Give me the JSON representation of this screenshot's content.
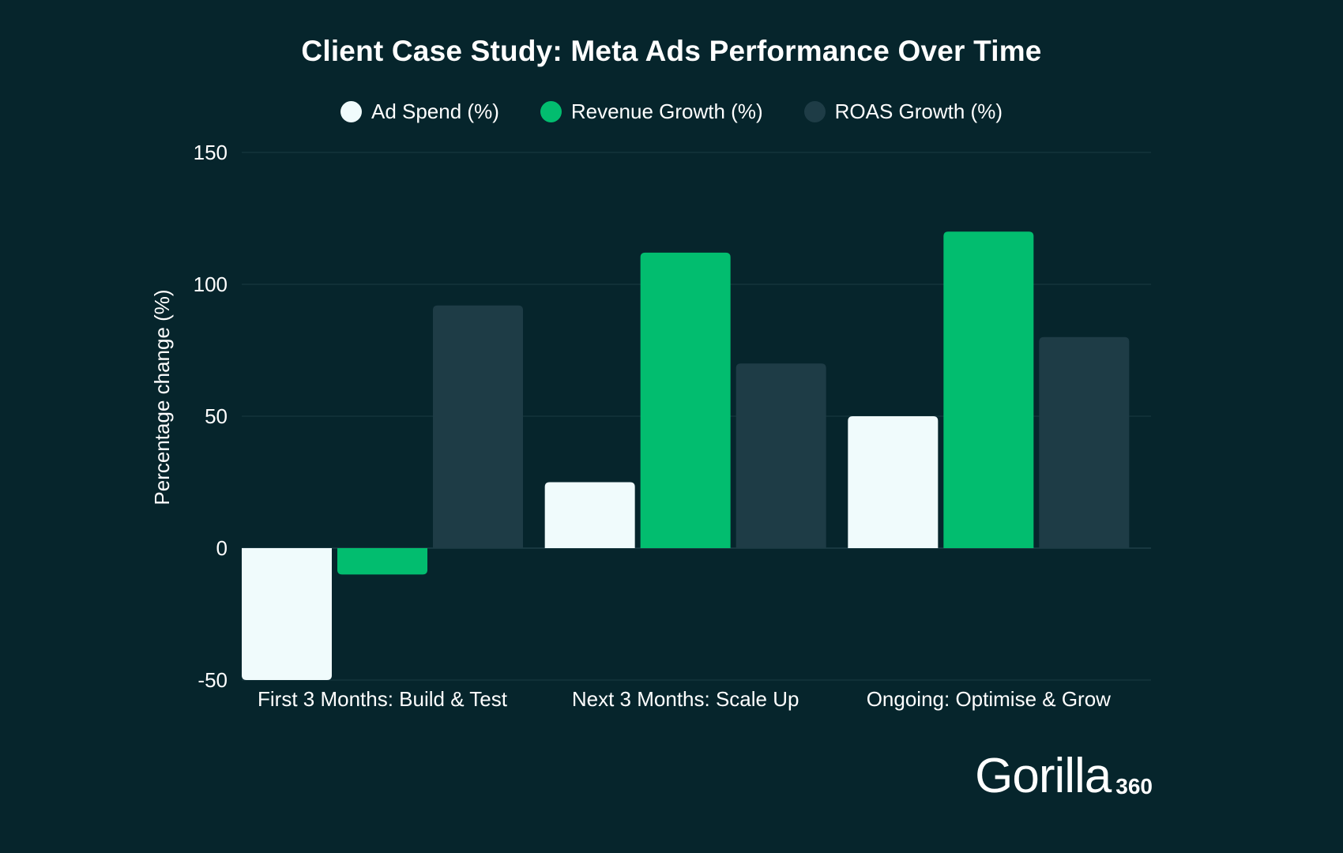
{
  "chart_data": {
    "type": "bar",
    "title": "Client Case Study: Meta Ads Performance Over Time",
    "ylabel": "Percentage change (%)",
    "xlabel": "",
    "categories": [
      "First 3 Months: Build & Test",
      "Next 3 Months: Scale Up",
      "Ongoing: Optimise & Grow"
    ],
    "series": [
      {
        "name": "Ad Spend (%)",
        "color": "#f0fbfc",
        "values": [
          -50,
          25,
          50
        ]
      },
      {
        "name": "Revenue Growth (%)",
        "color": "#02bd6f",
        "values": [
          -10,
          112,
          120
        ]
      },
      {
        "name": "ROAS Growth (%)",
        "color": "#1e3c46",
        "values": [
          92,
          70,
          80
        ]
      }
    ],
    "ylim": [
      -50,
      150
    ],
    "yticks": [
      -50,
      0,
      50,
      100,
      150
    ],
    "grid": true,
    "legend_position": "top-center"
  },
  "branding": {
    "logo_word": "Gorilla",
    "logo_number": "360"
  },
  "colors": {
    "background": "#06252c",
    "gridline": "#1a3a42",
    "text": "#ffffff"
  }
}
